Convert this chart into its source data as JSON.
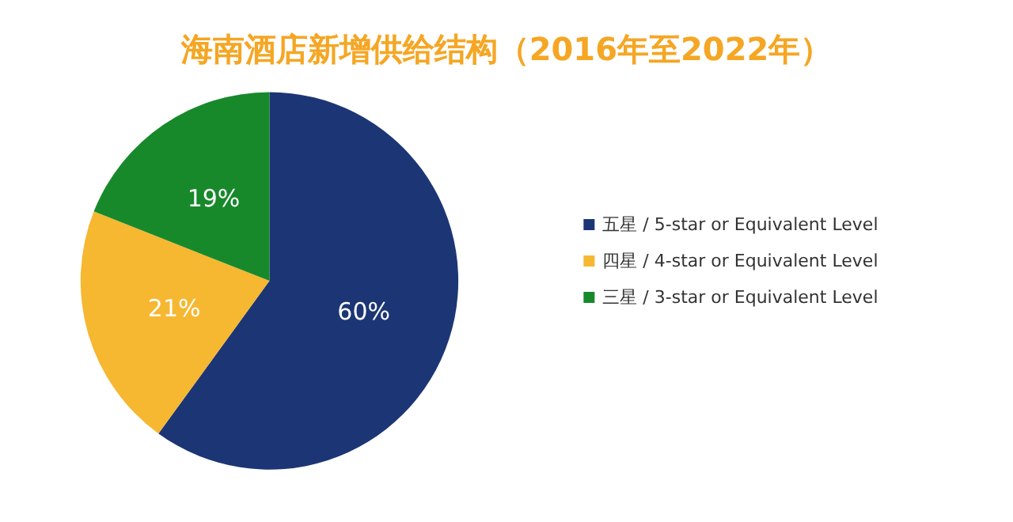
{
  "chart_data": {
    "type": "pie",
    "title": "海南酒店新增供给结构（2016年至2022年）",
    "categories": [
      "五星 / 5-star or Equivalent Level",
      "四星 / 4-star or Equivalent Level",
      "三星 / 3-star or Equivalent Level"
    ],
    "values": [
      60,
      21,
      19
    ],
    "colors": [
      "#1c3675",
      "#f6b731",
      "#17892b"
    ],
    "value_labels": [
      "60%",
      "21%",
      "19%"
    ],
    "legend": "right"
  }
}
